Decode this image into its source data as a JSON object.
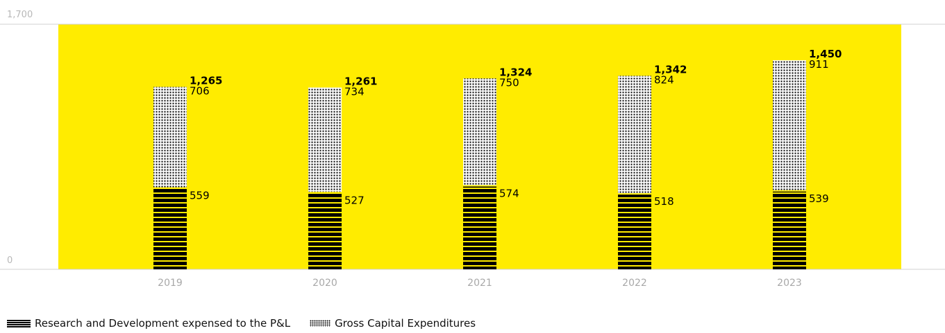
{
  "chart_data": {
    "type": "bar",
    "stacked": true,
    "categories": [
      "2019",
      "2020",
      "2021",
      "2022",
      "2023"
    ],
    "series": [
      {
        "name": "Research and Development expensed to the P&L",
        "values": [
          559,
          527,
          574,
          518,
          539
        ],
        "pattern": "horizontal-stripes"
      },
      {
        "name": "Gross Capital Expenditures",
        "values": [
          706,
          734,
          750,
          824,
          911
        ],
        "pattern": "dots"
      }
    ],
    "totals": [
      1265,
      1261,
      1324,
      1342,
      1450
    ],
    "value_labels": {
      "rd": [
        "559",
        "527",
        "574",
        "518",
        "539"
      ],
      "capex": [
        "706",
        "734",
        "750",
        "824",
        "911"
      ],
      "totals": [
        "1,265",
        "1,261",
        "1,324",
        "1,342",
        "1,450"
      ]
    },
    "y_ticks": [
      "1,700",
      "0"
    ],
    "ylim": [
      0,
      1700
    ],
    "grid": false,
    "legend_position": "bottom-left",
    "background_color": "#ffec00",
    "bar_color": "#000000"
  },
  "legend": {
    "rd_label": "Research and Development expensed to the P&L",
    "capex_label": "Gross Capital Expenditures"
  }
}
